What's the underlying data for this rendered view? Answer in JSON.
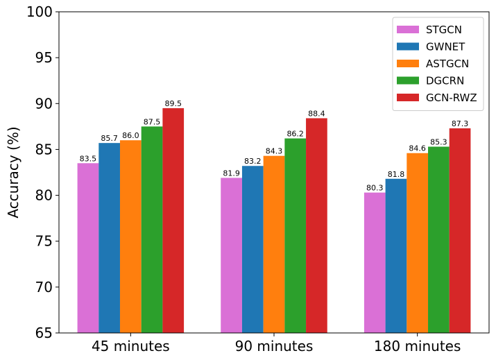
{
  "chart_data": {
    "type": "bar",
    "title": "",
    "xlabel": "",
    "ylabel": "Accuracy (%)",
    "ylim": [
      65,
      100
    ],
    "yticks": [
      65,
      70,
      75,
      80,
      85,
      90,
      95,
      100
    ],
    "categories": [
      "45 minutes",
      "90 minutes",
      "180 minutes"
    ],
    "legend_position": "top-right",
    "grid": false,
    "series": [
      {
        "name": "STGCN",
        "color": "#da70d6",
        "values": [
          83.5,
          81.9,
          80.3
        ]
      },
      {
        "name": "GWNET",
        "color": "#1f77b4",
        "values": [
          85.7,
          83.2,
          81.8
        ]
      },
      {
        "name": "ASTGCN",
        "color": "#ff7f0e",
        "values": [
          86.0,
          84.3,
          84.6
        ]
      },
      {
        "name": "DGCRN",
        "color": "#2ca02c",
        "values": [
          87.5,
          86.2,
          85.3
        ]
      },
      {
        "name": "GCN-RWZ",
        "color": "#d62728",
        "values": [
          89.5,
          88.4,
          87.3
        ]
      }
    ]
  }
}
